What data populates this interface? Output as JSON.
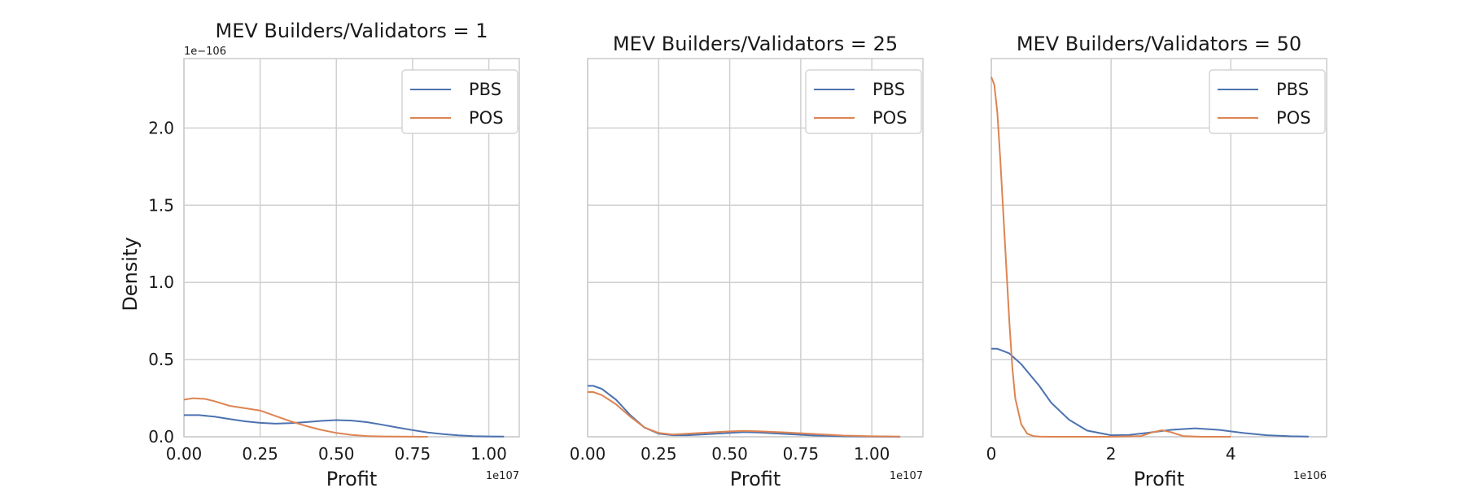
{
  "chart_data": [
    {
      "type": "line",
      "title": "MEV Builders/Validators = 1",
      "xlabel": "Profit",
      "ylabel": "Density",
      "x_exponent": "1e107",
      "y_exponent": "1e−106",
      "xlim": [
        0,
        1.1
      ],
      "ylim": [
        0,
        2.45
      ],
      "xticks": [
        0,
        0.25,
        0.5,
        0.75,
        1.0
      ],
      "xtick_labels": [
        "0.00",
        "0.25",
        "0.50",
        "0.75",
        "1.00"
      ],
      "yticks": [
        0,
        0.5,
        1.0,
        1.5,
        2.0
      ],
      "ytick_labels": [
        "0.0",
        "0.5",
        "1.0",
        "1.5",
        "2.0"
      ],
      "grid": true,
      "legend": "top-right",
      "series": [
        {
          "name": "PBS",
          "x": [
            0,
            0.05,
            0.1,
            0.15,
            0.2,
            0.25,
            0.3,
            0.35,
            0.4,
            0.45,
            0.5,
            0.55,
            0.6,
            0.65,
            0.7,
            0.75,
            0.8,
            0.85,
            0.9,
            0.95,
            1.0,
            1.05
          ],
          "y": [
            0.14,
            0.14,
            0.13,
            0.115,
            0.1,
            0.09,
            0.085,
            0.088,
            0.095,
            0.103,
            0.108,
            0.105,
            0.095,
            0.078,
            0.06,
            0.043,
            0.028,
            0.017,
            0.009,
            0.004,
            0.002,
            0.001
          ]
        },
        {
          "name": "POS",
          "x": [
            0,
            0.03,
            0.07,
            0.1,
            0.15,
            0.2,
            0.25,
            0.3,
            0.35,
            0.4,
            0.45,
            0.5,
            0.55,
            0.6,
            0.65,
            0.7,
            0.75,
            0.8
          ],
          "y": [
            0.24,
            0.25,
            0.245,
            0.23,
            0.2,
            0.185,
            0.17,
            0.135,
            0.1,
            0.07,
            0.045,
            0.025,
            0.012,
            0.005,
            0.002,
            0.001,
            0.0003,
            0
          ]
        }
      ]
    },
    {
      "type": "line",
      "title": "MEV Builders/Validators = 25",
      "xlabel": "Profit",
      "ylabel": "",
      "x_exponent": "1e107",
      "xlim": [
        0,
        1.18
      ],
      "ylim": [
        0,
        2.45
      ],
      "xticks": [
        0,
        0.25,
        0.5,
        0.75,
        1.0
      ],
      "xtick_labels": [
        "0.00",
        "0.25",
        "0.50",
        "0.75",
        "1.00"
      ],
      "grid": true,
      "legend": "top-right",
      "series": [
        {
          "name": "PBS",
          "x": [
            0,
            0.02,
            0.05,
            0.1,
            0.15,
            0.2,
            0.25,
            0.3,
            0.35,
            0.4,
            0.5,
            0.55,
            0.6,
            0.7,
            0.8,
            0.9,
            1.0,
            1.1
          ],
          "y": [
            0.33,
            0.33,
            0.31,
            0.24,
            0.14,
            0.06,
            0.02,
            0.01,
            0.01,
            0.015,
            0.025,
            0.03,
            0.028,
            0.018,
            0.008,
            0.003,
            0.001,
            0
          ]
        },
        {
          "name": "POS",
          "x": [
            0,
            0.02,
            0.05,
            0.1,
            0.15,
            0.2,
            0.25,
            0.3,
            0.35,
            0.4,
            0.5,
            0.55,
            0.6,
            0.7,
            0.8,
            0.9,
            1.0,
            1.1
          ],
          "y": [
            0.29,
            0.29,
            0.27,
            0.21,
            0.13,
            0.06,
            0.025,
            0.015,
            0.02,
            0.025,
            0.035,
            0.038,
            0.036,
            0.028,
            0.018,
            0.008,
            0.003,
            0.001
          ]
        }
      ]
    },
    {
      "type": "line",
      "title": "MEV Builders/Validators = 50",
      "xlabel": "Profit",
      "ylabel": "",
      "x_exponent": "1e106",
      "xlim": [
        0,
        5.6
      ],
      "ylim": [
        0,
        2.45
      ],
      "xticks": [
        0,
        2,
        4
      ],
      "xtick_labels": [
        "0",
        "2",
        "4"
      ],
      "grid": true,
      "legend": "top-right",
      "series": [
        {
          "name": "PBS",
          "x": [
            0,
            0.1,
            0.3,
            0.5,
            0.8,
            1.0,
            1.3,
            1.6,
            2.0,
            2.3,
            2.6,
            3.0,
            3.4,
            3.8,
            4.2,
            4.6,
            5.0,
            5.3
          ],
          "y": [
            0.57,
            0.57,
            0.54,
            0.47,
            0.33,
            0.22,
            0.11,
            0.04,
            0.01,
            0.012,
            0.025,
            0.045,
            0.055,
            0.045,
            0.025,
            0.01,
            0.003,
            0.001
          ]
        },
        {
          "name": "POS",
          "x": [
            0,
            0.05,
            0.1,
            0.15,
            0.2,
            0.25,
            0.3,
            0.35,
            0.4,
            0.5,
            0.6,
            0.7,
            0.8,
            1.0,
            1.5,
            2.0,
            2.5,
            2.7,
            2.85,
            3.0,
            3.2,
            3.5,
            4.0
          ],
          "y": [
            2.33,
            2.28,
            2.1,
            1.8,
            1.45,
            1.1,
            0.75,
            0.45,
            0.25,
            0.08,
            0.02,
            0.005,
            0.001,
            0,
            0,
            0,
            0.005,
            0.03,
            0.042,
            0.03,
            0.005,
            0,
            0
          ]
        }
      ]
    }
  ],
  "colors": {
    "PBS": "#4c72b0",
    "POS": "#dd8452"
  }
}
